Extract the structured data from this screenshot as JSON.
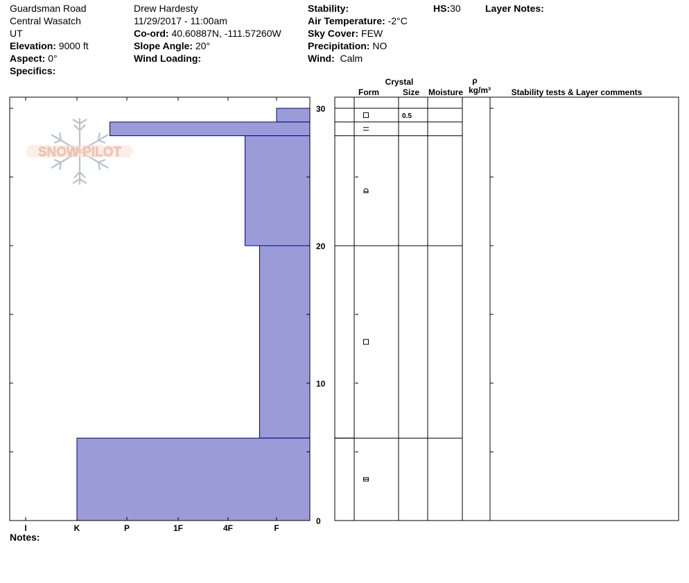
{
  "header": {
    "location": "Guardsman Road",
    "range": "Central Wasatch",
    "state": "UT",
    "elevation_label": "Elevation:",
    "elevation_value": "9000 ft",
    "aspect_label": "Aspect:",
    "aspect_value": "0°",
    "specifics_label": "Specifics:",
    "observer": "Drew Hardesty",
    "datetime": "11/29/2017 - 11:00am",
    "coord_label": "Co-ord:",
    "coord_value": "40.60887N, -111.57260W",
    "slope_label": "Slope Angle:",
    "slope_value": "20°",
    "wind_loading_label": "Wind Loading:",
    "stability_label": "Stability:",
    "air_temp_label": "Air Temperature:",
    "air_temp_value": "-2°C",
    "sky_label": "Sky Cover:",
    "sky_value": "FEW",
    "precip_label": "Precipitation:",
    "precip_value": "NO",
    "wind_label": "Wind:",
    "wind_value": "Calm",
    "hs_label": "HS:",
    "hs_value": "30",
    "layer_notes_label": "Layer Notes:"
  },
  "notes_label": "Notes:",
  "logo_text": "SNOW PILOT",
  "colors": {
    "layer_fill": "#9b9bd7",
    "layer_stroke": "#00008b",
    "logo_text": "#f2c6b4",
    "logo_flake": "#b7c3cc"
  },
  "table_headers": {
    "crystal": "Crystal",
    "form": "Form",
    "size": "Size",
    "moisture": "Moisture",
    "rho": "ρ",
    "density": "kg/m³",
    "stability": "Stability tests & Layer comments"
  },
  "chart_data": {
    "type": "snow-profile",
    "y_axis": {
      "unit": "cm",
      "range": [
        0,
        30
      ],
      "ticks": [
        0,
        10,
        20,
        30
      ]
    },
    "hardness_labels": [
      "I",
      "K",
      "P",
      "1F",
      "4F",
      "F"
    ],
    "layers": [
      {
        "top": 30,
        "bottom": 29,
        "hardness": "F"
      },
      {
        "top": 29,
        "bottom": 28,
        "hardness": "P+"
      },
      {
        "top": 28,
        "bottom": 20,
        "hardness": "4F-"
      },
      {
        "top": 20,
        "bottom": 6,
        "hardness": "F+"
      },
      {
        "top": 6,
        "bottom": 0,
        "hardness": "K"
      }
    ],
    "layer_details": [
      {
        "top": 30,
        "bottom": 29,
        "form": "facets",
        "size": "0.5"
      },
      {
        "top": 29,
        "bottom": 28,
        "form": "crust",
        "size": ""
      },
      {
        "top": 28,
        "bottom": 20,
        "form": "rounding-facets",
        "size": ""
      },
      {
        "top": 20,
        "bottom": 6,
        "form": "facets",
        "size": ""
      },
      {
        "top": 6,
        "bottom": 0,
        "form": "faceted-rounds",
        "size": ""
      }
    ]
  }
}
